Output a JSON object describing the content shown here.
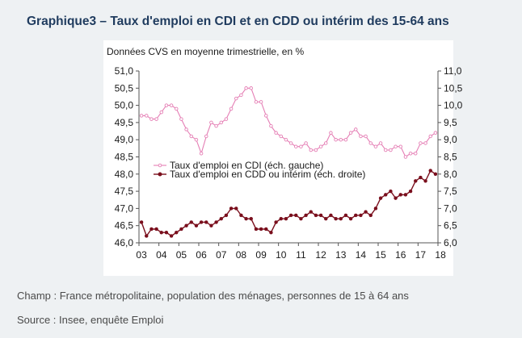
{
  "title": "Graphique3 – Taux d'emploi en CDI et en CDD ou intérim des 15-64 ans",
  "footnotes": {
    "champ": "Champ : France métropolitaine, population des ménages, personnes de 15 à 64 ans",
    "source": "Source : Insee, enquête Emploi"
  },
  "colors": {
    "cdi": "#e57fb5",
    "cdd": "#7a0f1d",
    "title": "#1f3b5e",
    "background": "#eef1f3"
  },
  "chart_data": {
    "type": "line",
    "subtitle": "Données CVS en moyenne trimestrielle, en %",
    "x_tick_labels": [
      "03",
      "04",
      "05",
      "06",
      "07",
      "08",
      "09",
      "10",
      "11",
      "12",
      "13",
      "14",
      "15",
      "16",
      "17",
      "18"
    ],
    "y_left": {
      "ticks": [
        "46,0",
        "46,5",
        "47,0",
        "47,5",
        "48,0",
        "48,5",
        "49,0",
        "49,5",
        "50,0",
        "50,5",
        "51,0"
      ],
      "range": [
        46.0,
        51.0
      ]
    },
    "y_right": {
      "ticks": [
        "6,0",
        "6,5",
        "7,0",
        "7,5",
        "8,0",
        "8,5",
        "9,0",
        "9,5",
        "10,0",
        "10,5",
        "11,0"
      ],
      "range": [
        6.0,
        11.0
      ]
    },
    "grid": false,
    "legend_position": "center-left",
    "series": [
      {
        "name": "Taux d'emploi en CDI (éch. gauche)",
        "axis": "left",
        "marker": "open-circle",
        "values": [
          49.7,
          49.7,
          49.6,
          49.6,
          49.8,
          50.0,
          50.0,
          49.9,
          49.6,
          49.3,
          49.1,
          49.0,
          48.6,
          49.1,
          49.5,
          49.4,
          49.5,
          49.6,
          49.9,
          50.2,
          50.3,
          50.5,
          50.5,
          50.1,
          50.1,
          49.7,
          49.4,
          49.2,
          49.1,
          49.0,
          48.9,
          48.8,
          48.8,
          48.9,
          48.7,
          48.7,
          48.8,
          48.9,
          49.2,
          49.0,
          49.0,
          49.0,
          49.2,
          49.3,
          49.1,
          49.1,
          48.9,
          48.8,
          48.9,
          48.7,
          48.7,
          48.8,
          48.8,
          48.5,
          48.6,
          48.6,
          48.9,
          48.9,
          49.1,
          49.2
        ]
      },
      {
        "name": "Taux d'emploi en CDD ou intérim (éch. droite)",
        "axis": "right",
        "marker": "filled-circle",
        "values": [
          6.6,
          6.2,
          6.4,
          6.4,
          6.3,
          6.3,
          6.2,
          6.3,
          6.4,
          6.5,
          6.6,
          6.5,
          6.6,
          6.6,
          6.5,
          6.6,
          6.7,
          6.8,
          7.0,
          7.0,
          6.8,
          6.7,
          6.7,
          6.4,
          6.4,
          6.4,
          6.3,
          6.6,
          6.7,
          6.7,
          6.8,
          6.8,
          6.7,
          6.8,
          6.9,
          6.8,
          6.8,
          6.7,
          6.8,
          6.7,
          6.7,
          6.8,
          6.7,
          6.8,
          6.8,
          6.9,
          6.8,
          7.0,
          7.3,
          7.4,
          7.5,
          7.3,
          7.4,
          7.4,
          7.5,
          7.8,
          7.9,
          7.8,
          8.1,
          8.0
        ]
      }
    ]
  }
}
